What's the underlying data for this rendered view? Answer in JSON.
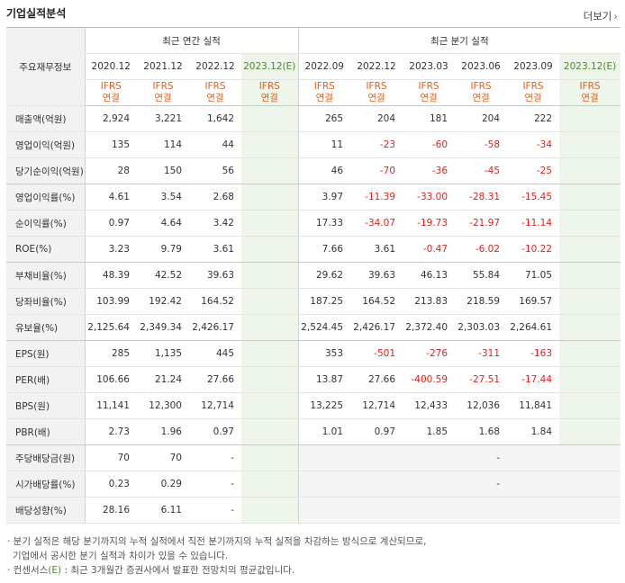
{
  "title": "기업실적분석",
  "more": "더보기",
  "header": {
    "label_col": "주요재무정보",
    "annual_group": "최근 연간 실적",
    "quarter_group": "최근 분기 실적",
    "annual_years": [
      "2020.12",
      "2021.12",
      "2022.12",
      "2023.12(E)"
    ],
    "quarter_years": [
      "2022.09",
      "2022.12",
      "2023.03",
      "2023.06",
      "2023.09",
      "2023.12(E)"
    ],
    "ifrs_line1": "IFRS",
    "ifrs_line2": "연결"
  },
  "rows": [
    {
      "label": "매출액(억원)",
      "annual": [
        "2,924",
        "3,221",
        "1,642",
        ""
      ],
      "quarter": [
        "265",
        "204",
        "181",
        "204",
        "222",
        ""
      ]
    },
    {
      "label": "영업이익(억원)",
      "annual": [
        "135",
        "114",
        "44",
        ""
      ],
      "quarter": [
        "11",
        "-23",
        "-60",
        "-58",
        "-34",
        ""
      ]
    },
    {
      "label": "당기순이익(억원)",
      "annual": [
        "28",
        "150",
        "56",
        ""
      ],
      "quarter": [
        "46",
        "-70",
        "-36",
        "-45",
        "-25",
        ""
      ]
    },
    {
      "label": "영업이익률(%)",
      "annual": [
        "4.61",
        "3.54",
        "2.68",
        ""
      ],
      "quarter": [
        "3.97",
        "-11.39",
        "-33.00",
        "-28.31",
        "-15.45",
        ""
      ]
    },
    {
      "label": "순이익률(%)",
      "annual": [
        "0.97",
        "4.64",
        "3.42",
        ""
      ],
      "quarter": [
        "17.33",
        "-34.07",
        "-19.73",
        "-21.97",
        "-11.14",
        ""
      ]
    },
    {
      "label": "ROE(%)",
      "annual": [
        "3.23",
        "9.79",
        "3.61",
        ""
      ],
      "quarter": [
        "7.66",
        "3.61",
        "-0.47",
        "-6.02",
        "-10.22",
        ""
      ]
    },
    {
      "label": "부채비율(%)",
      "annual": [
        "48.39",
        "42.52",
        "39.63",
        ""
      ],
      "quarter": [
        "29.62",
        "39.63",
        "46.13",
        "55.84",
        "71.05",
        ""
      ]
    },
    {
      "label": "당좌비율(%)",
      "annual": [
        "103.99",
        "192.42",
        "164.52",
        ""
      ],
      "quarter": [
        "187.25",
        "164.52",
        "213.83",
        "218.59",
        "169.57",
        ""
      ]
    },
    {
      "label": "유보율(%)",
      "annual": [
        "2,125.64",
        "2,349.34",
        "2,426.17",
        ""
      ],
      "quarter": [
        "2,524.45",
        "2,426.17",
        "2,372.40",
        "2,303.03",
        "2,264.61",
        ""
      ]
    },
    {
      "label": "EPS(원)",
      "annual": [
        "285",
        "1,135",
        "445",
        ""
      ],
      "quarter": [
        "353",
        "-501",
        "-276",
        "-311",
        "-163",
        ""
      ]
    },
    {
      "label": "PER(배)",
      "annual": [
        "106.66",
        "21.24",
        "27.66",
        ""
      ],
      "quarter": [
        "13.87",
        "27.66",
        "-400.59",
        "-27.51",
        "-17.44",
        ""
      ]
    },
    {
      "label": "BPS(원)",
      "annual": [
        "11,141",
        "12,300",
        "12,714",
        ""
      ],
      "quarter": [
        "13,225",
        "12,714",
        "12,433",
        "12,036",
        "11,841",
        ""
      ]
    },
    {
      "label": "PBR(배)",
      "annual": [
        "2.73",
        "1.96",
        "0.97",
        ""
      ],
      "quarter": [
        "1.01",
        "0.97",
        "1.85",
        "1.68",
        "1.84",
        ""
      ]
    },
    {
      "label": "주당배당금(원)",
      "annual": [
        "70",
        "70",
        "-",
        ""
      ],
      "quarter": [
        "",
        "",
        "",
        "-",
        "",
        ""
      ]
    },
    {
      "label": "시가배당률(%)",
      "annual": [
        "0.23",
        "0.29",
        "-",
        ""
      ],
      "quarter": [
        "",
        "",
        "",
        "-",
        "",
        ""
      ]
    },
    {
      "label": "배당성향(%)",
      "annual": [
        "28.16",
        "6.11",
        "-",
        ""
      ],
      "quarter": [
        "",
        "",
        "",
        "",
        "",
        ""
      ]
    }
  ],
  "notes": [
    "· 분기 실적은 해당 분기까지의 누적 실적에서 직전 분기까지의 누적 실적을 차감하는 방식으로 계산되므로,",
    "  기업에서 공시한 분기 실적과 차이가 있을 수 있습니다.",
    "· 컨센서스(E) : 최근 3개월간 증권사에서 발표한 전망치의 평균값입니다."
  ],
  "colors": {
    "negative": "#e02020",
    "ifrs": "#e0611e",
    "estimate_bg": "#eef5ea"
  }
}
